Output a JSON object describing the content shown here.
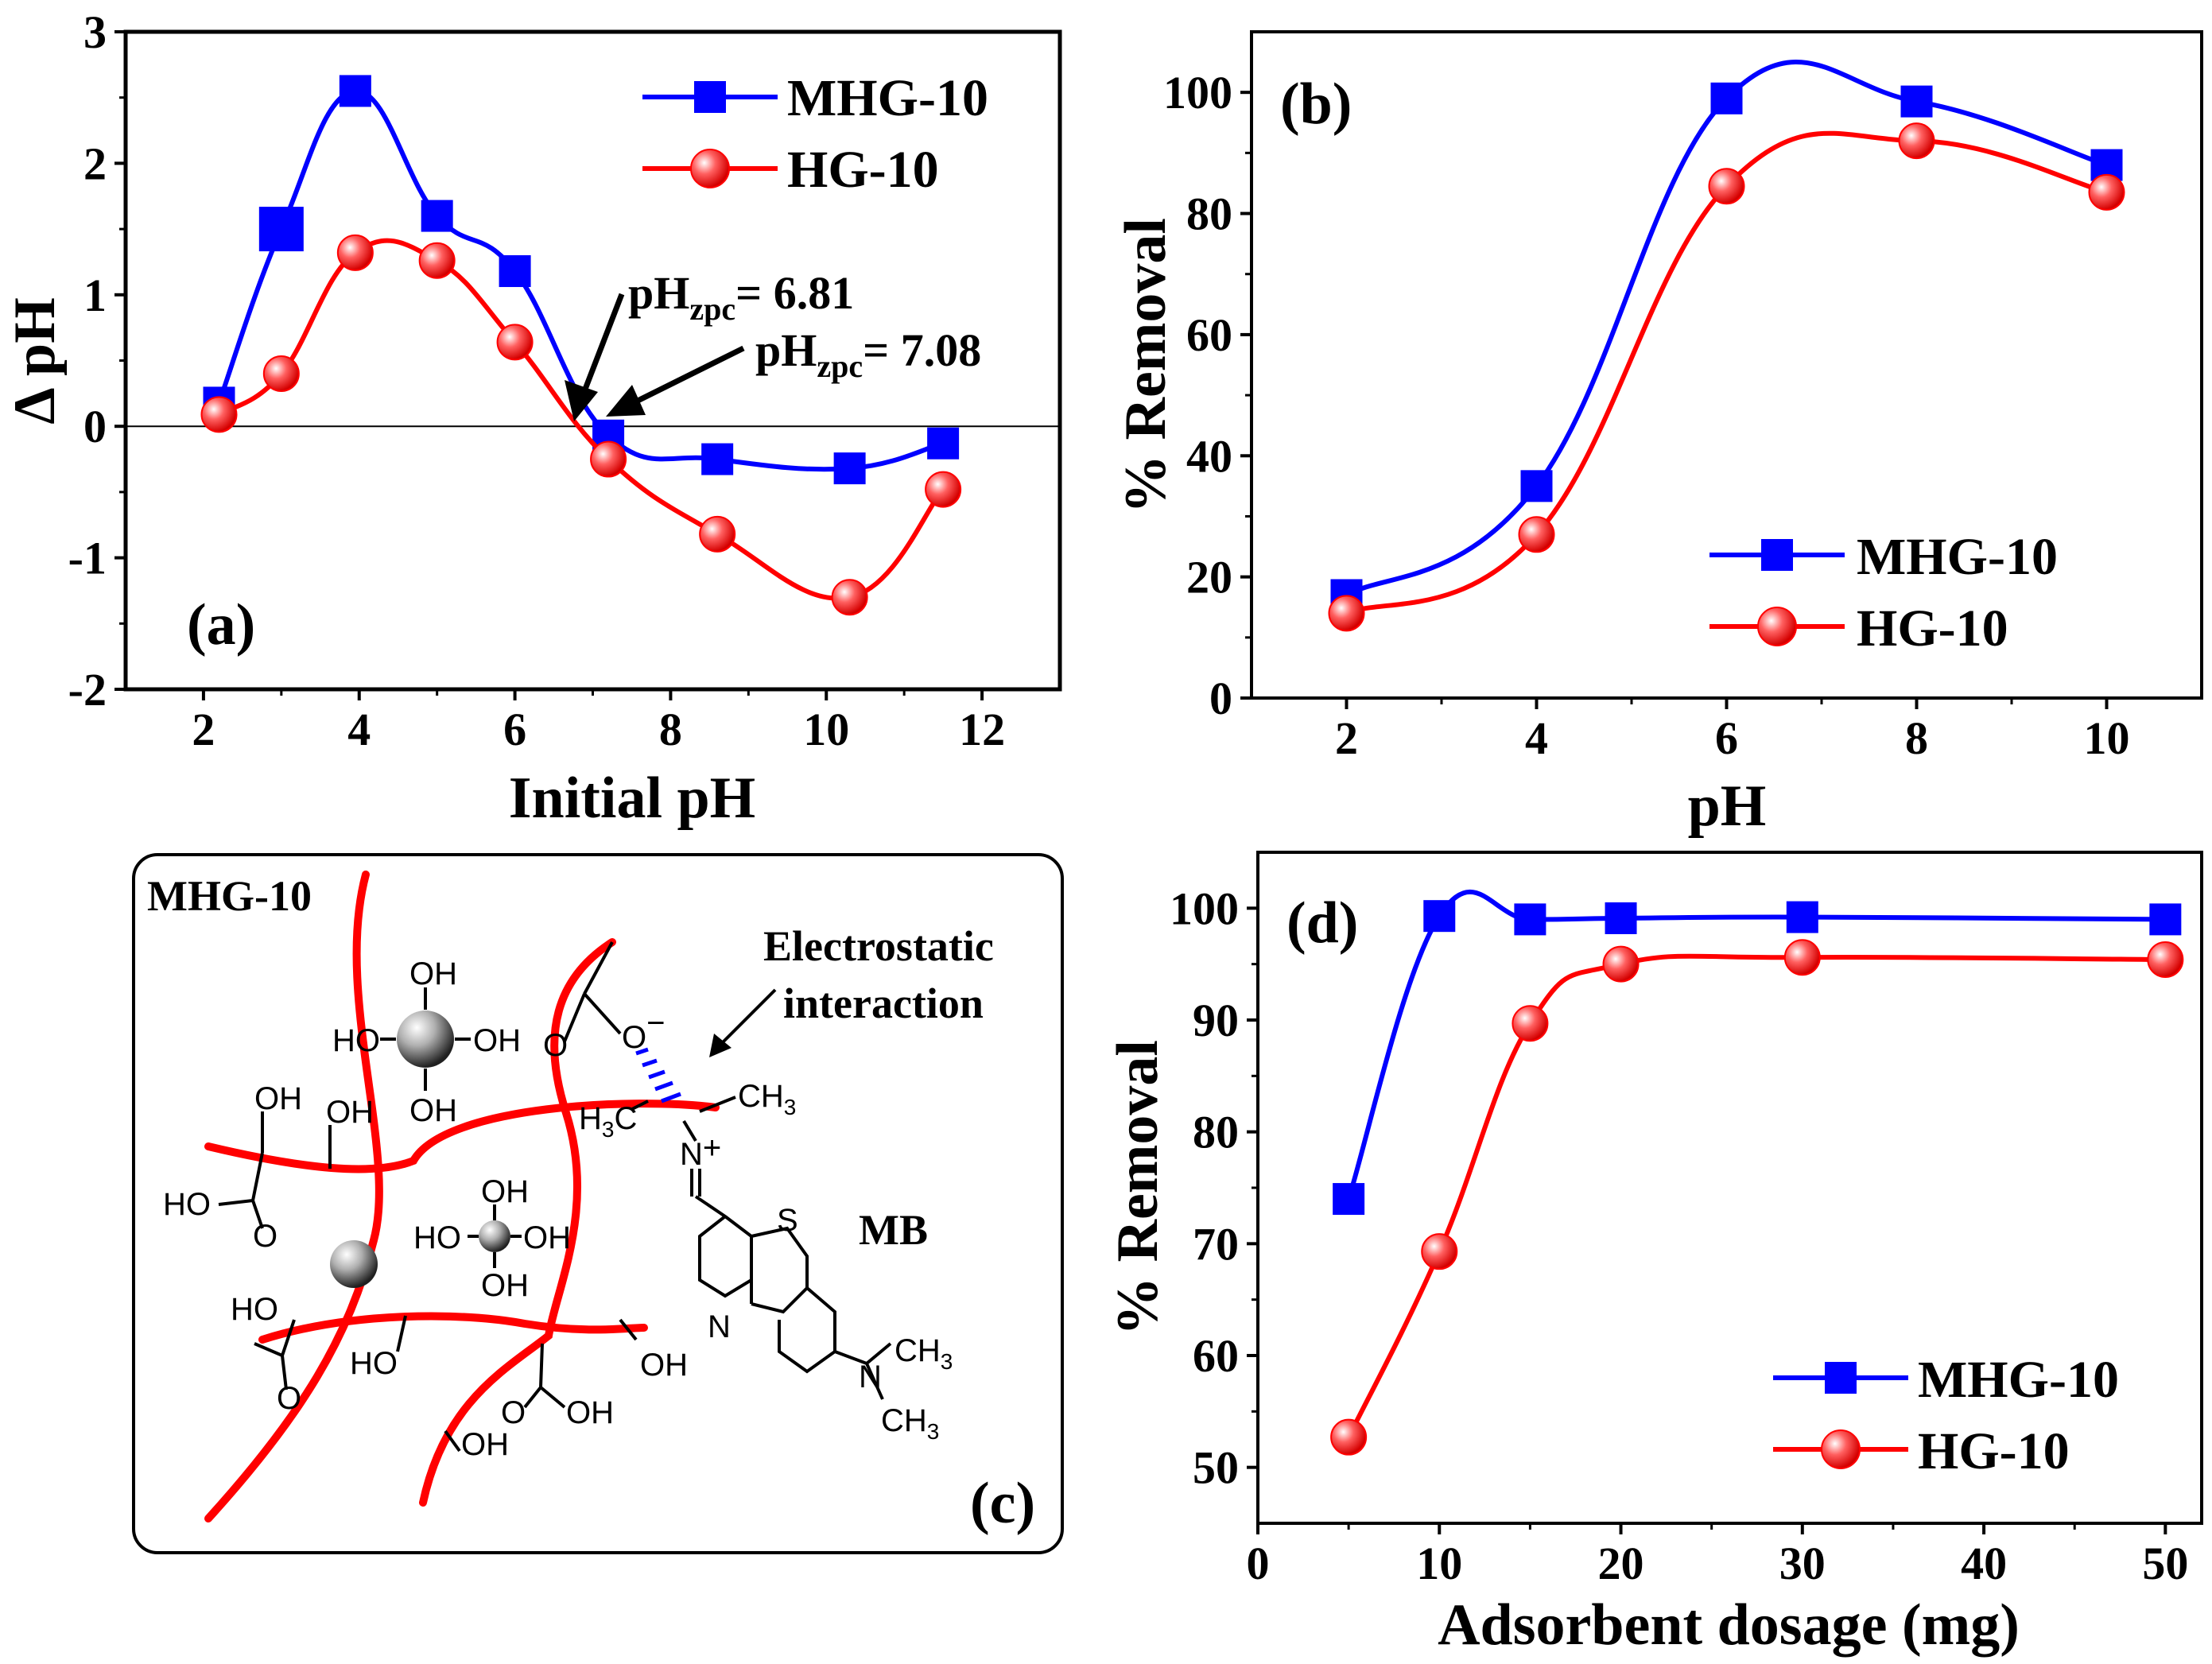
{
  "chart_data": [
    {
      "id": "a",
      "type": "line",
      "panel_label": "(a)",
      "xlabel": "Initial pH",
      "ylabel": "Δ pH",
      "xlim": [
        1,
        13
      ],
      "ylim": [
        -2,
        3
      ],
      "xticks": [
        2,
        4,
        6,
        8,
        10,
        12
      ],
      "yticks": [
        -2,
        -1,
        0,
        1,
        2,
        3
      ],
      "zero_line": true,
      "legend_position": "top-right",
      "series": [
        {
          "name": "MHG-10",
          "color": "#0000ff",
          "marker": "square",
          "x": [
            2.2,
            3.0,
            3.95,
            5.0,
            6.0,
            7.2,
            8.6,
            10.3,
            11.5
          ],
          "y": [
            0.18,
            1.5,
            2.55,
            1.6,
            1.18,
            -0.07,
            -0.25,
            -0.32,
            -0.13
          ]
        },
        {
          "name": "HG-10",
          "color": "#ff0000",
          "marker": "circle",
          "x": [
            2.2,
            3.0,
            3.95,
            5.0,
            6.0,
            7.2,
            8.6,
            10.3,
            11.5
          ],
          "y": [
            0.09,
            0.4,
            1.32,
            1.26,
            0.64,
            -0.25,
            -0.82,
            -1.3,
            -0.48
          ]
        }
      ],
      "annotations": [
        {
          "base": "pH",
          "sub": "zpc",
          "text": "= 6.81"
        },
        {
          "base": "pH",
          "sub": "zpc",
          "text": "= 7.08"
        }
      ]
    },
    {
      "id": "b",
      "type": "line",
      "panel_label": "(b)",
      "xlabel": "pH",
      "ylabel": "% Removal",
      "xlim": [
        1,
        11
      ],
      "ylim": [
        0,
        110
      ],
      "xticks": [
        2,
        4,
        6,
        8,
        10
      ],
      "yticks": [
        0,
        20,
        40,
        60,
        80,
        100
      ],
      "legend_position": "bottom-right",
      "series": [
        {
          "name": "MHG-10",
          "color": "#0000ff",
          "marker": "square",
          "x": [
            2,
            4,
            6,
            8,
            10
          ],
          "y": [
            17,
            35,
            99,
            98.5,
            88
          ]
        },
        {
          "name": "HG-10",
          "color": "#ff0000",
          "marker": "circle",
          "x": [
            2,
            4,
            6,
            8,
            10
          ],
          "y": [
            14,
            27,
            84.5,
            92,
            83.5
          ]
        }
      ]
    },
    {
      "id": "d",
      "type": "line",
      "panel_label": "(d)",
      "xlabel": "Adsorbent dosage (mg)",
      "ylabel": "% Removal",
      "xlim": [
        0,
        52
      ],
      "ylim": [
        45,
        105
      ],
      "xticks": [
        0,
        10,
        20,
        30,
        40,
        50
      ],
      "yticks": [
        50,
        60,
        70,
        80,
        90,
        100
      ],
      "legend_position": "bottom-right",
      "series": [
        {
          "name": "MHG-10",
          "color": "#0000ff",
          "marker": "square",
          "x": [
            5,
            10,
            15,
            20,
            30,
            50
          ],
          "y": [
            74,
            99.3,
            99,
            99.1,
            99.2,
            99
          ]
        },
        {
          "name": "HG-10",
          "color": "#ff0000",
          "marker": "circle",
          "x": [
            5,
            10,
            15,
            20,
            30,
            50
          ],
          "y": [
            52.7,
            69.3,
            89.7,
            95,
            95.6,
            95.4
          ]
        }
      ]
    }
  ],
  "schematic": {
    "panel_label": "(c)",
    "material_label": "MHG-10",
    "interaction_label_line1": "Electrostatic",
    "interaction_label_line2": "interaction",
    "dye_label": "MB",
    "groups": {
      "oh": "OH",
      "ho": "HO",
      "o": "O",
      "o_minus": "O",
      "minus": "−",
      "ch3": "CH",
      "three": "3",
      "h3c": "H",
      "c": "C",
      "n": "N",
      "plus": "+",
      "s": "S"
    }
  }
}
